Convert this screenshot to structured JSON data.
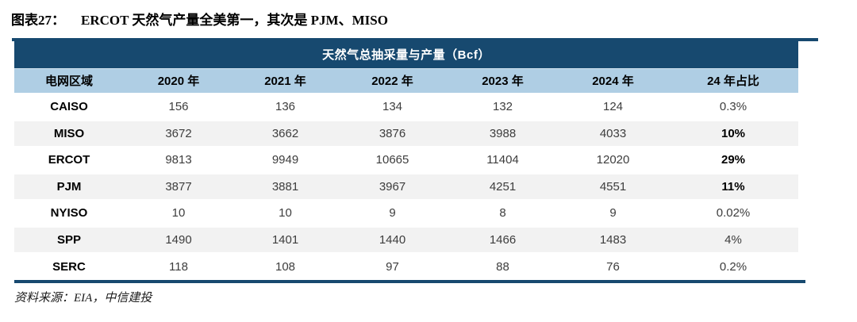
{
  "figure": {
    "label": "图表27：",
    "title": "ERCOT 天然气产量全美第一，其次是 PJM、MISO"
  },
  "chart_data": {
    "type": "table",
    "title": "天然气总抽采量与产量（Bcf）",
    "columns": [
      "电网区域",
      "2020 年",
      "2021 年",
      "2022 年",
      "2023 年",
      "2024 年",
      "24 年占比"
    ],
    "rows": [
      {
        "cells": [
          "CAISO",
          "156",
          "136",
          "134",
          "132",
          "124",
          "0.3%"
        ],
        "share_bold": false
      },
      {
        "cells": [
          "MISO",
          "3672",
          "3662",
          "3876",
          "3988",
          "4033",
          "10%"
        ],
        "share_bold": true
      },
      {
        "cells": [
          "ERCOT",
          "9813",
          "9949",
          "10665",
          "11404",
          "12020",
          "29%"
        ],
        "share_bold": true
      },
      {
        "cells": [
          "PJM",
          "3877",
          "3881",
          "3967",
          "4251",
          "4551",
          "11%"
        ],
        "share_bold": true
      },
      {
        "cells": [
          "NYISO",
          "10",
          "10",
          "9",
          "8",
          "9",
          "0.02%"
        ],
        "share_bold": false
      },
      {
        "cells": [
          "SPP",
          "1490",
          "1401",
          "1440",
          "1466",
          "1483",
          "4%"
        ],
        "share_bold": false
      },
      {
        "cells": [
          "SERC",
          "118",
          "108",
          "97",
          "88",
          "76",
          "0.2%"
        ],
        "share_bold": false
      }
    ]
  },
  "source": {
    "text": "资料来源：EIA，中信建投"
  },
  "colors": {
    "navy": "#17496F",
    "header_blue": "#AFCEE4",
    "row_alt": "#F2F2F2"
  }
}
